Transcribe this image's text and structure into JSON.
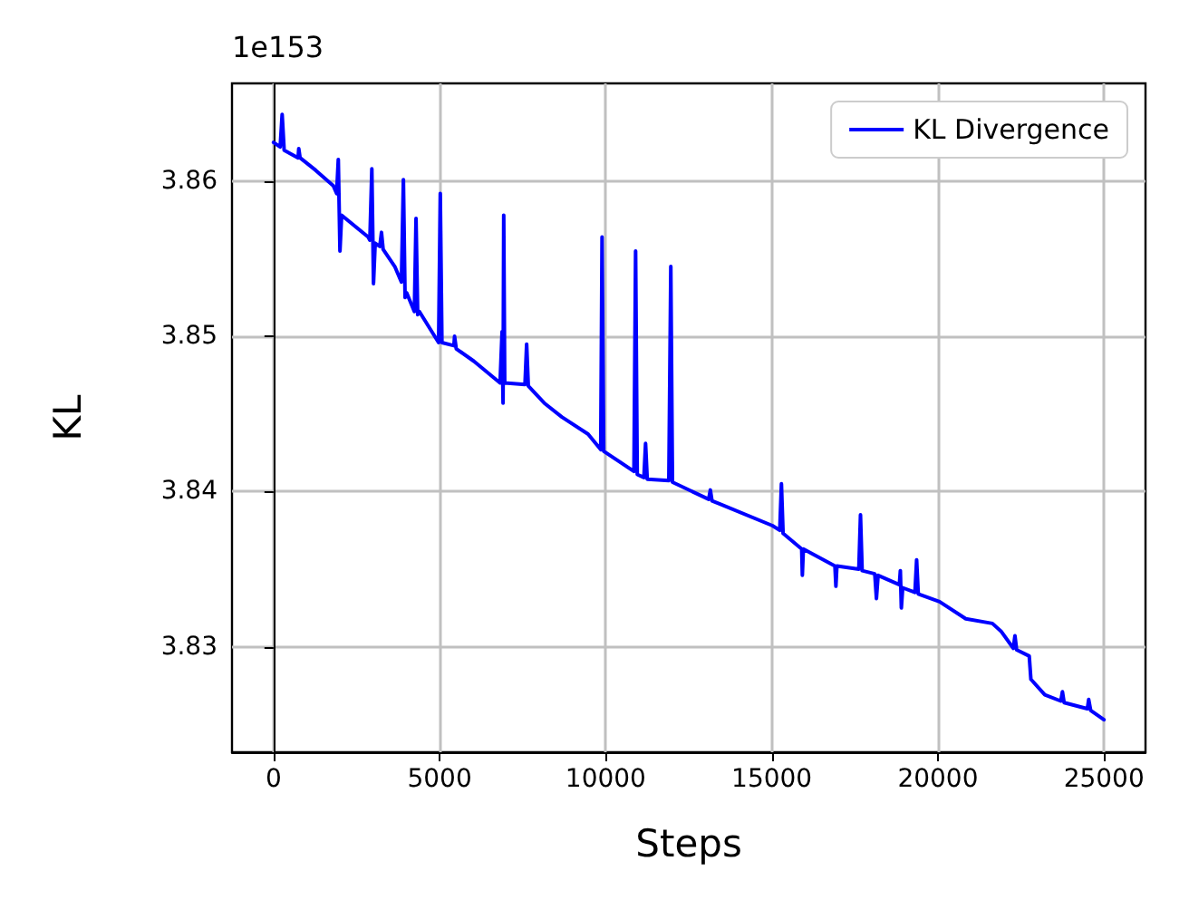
{
  "chart_data": {
    "type": "line",
    "xlabel": "Steps",
    "ylabel": "KL",
    "annotations": [
      "1e153"
    ],
    "x": [
      0,
      200,
      260,
      320,
      740,
      760,
      800,
      1270,
      1800,
      1900,
      1950,
      2000,
      2050,
      2850,
      2900,
      2960,
      3010,
      3060,
      3200,
      3250,
      3300,
      3650,
      3850,
      3910,
      3960,
      4010,
      4240,
      4290,
      4340,
      4390,
      4970,
      5020,
      5070,
      5430,
      5450,
      5500,
      6030,
      6820,
      6850,
      6880,
      6910,
      6930,
      6960,
      7570,
      7620,
      7670,
      8150,
      8680,
      9470,
      9850,
      9890,
      9940,
      10850,
      10900,
      10950,
      11150,
      11200,
      11250,
      11900,
      11960,
      12010,
      13100,
      13150,
      13200,
      13440,
      15020,
      15240,
      15290,
      15340,
      15900,
      15920,
      15950,
      16900,
      16930,
      16960,
      17620,
      17670,
      17720,
      18100,
      18150,
      18200,
      18840,
      18870,
      18900,
      18940,
      19310,
      19360,
      19410,
      20050,
      20840,
      21640,
      21900,
      22270,
      22320,
      22370,
      22750,
      22800,
      23220,
      23700,
      23750,
      23800,
      24500,
      24540,
      24600,
      25000
    ],
    "series": [
      {
        "name": "KL Divergence",
        "color": "#0000ff",
        "values": [
          3.8625,
          3.8622,
          3.8643,
          3.862,
          3.8615,
          3.8621,
          3.8615,
          3.8607,
          3.8597,
          3.8592,
          3.8614,
          3.8555,
          3.8578,
          3.8564,
          3.8562,
          3.8608,
          3.8534,
          3.856,
          3.8558,
          3.8567,
          3.8556,
          3.8545,
          3.8535,
          3.8601,
          3.8525,
          3.8528,
          3.8516,
          3.8576,
          3.8514,
          3.8516,
          3.8496,
          3.8592,
          3.8496,
          3.8494,
          3.85,
          3.8492,
          3.8484,
          3.847,
          3.847,
          3.8503,
          3.8457,
          3.8578,
          3.847,
          3.8469,
          3.8495,
          3.8468,
          3.8457,
          3.8448,
          3.8437,
          3.8427,
          3.8564,
          3.8426,
          3.8413,
          3.8555,
          3.8411,
          3.8409,
          3.8431,
          3.8408,
          3.8407,
          3.8545,
          3.8406,
          3.8395,
          3.8401,
          3.8394,
          3.8392,
          3.8378,
          3.8375,
          3.8405,
          3.8373,
          3.8363,
          3.8346,
          3.8363,
          3.8352,
          3.8339,
          3.8352,
          3.835,
          3.8385,
          3.8349,
          3.8347,
          3.8331,
          3.8346,
          3.834,
          3.8349,
          3.8325,
          3.8338,
          3.8335,
          3.8356,
          3.8334,
          3.8329,
          3.8318,
          3.8315,
          3.831,
          3.8299,
          3.8307,
          3.8298,
          3.8294,
          3.8279,
          3.8269,
          3.8265,
          3.8271,
          3.8264,
          3.826,
          3.8266,
          3.8259,
          3.8253
        ]
      }
    ],
    "xlim": [
      -1250,
      26250
    ],
    "ylim": [
      3.8232,
      3.8663
    ],
    "xticks": [
      0,
      5000,
      10000,
      15000,
      20000,
      25000
    ],
    "yticks": [
      3.83,
      3.84,
      3.85,
      3.86
    ],
    "grid": true,
    "legend": "top right",
    "marker": "none",
    "line_style": "solid"
  }
}
